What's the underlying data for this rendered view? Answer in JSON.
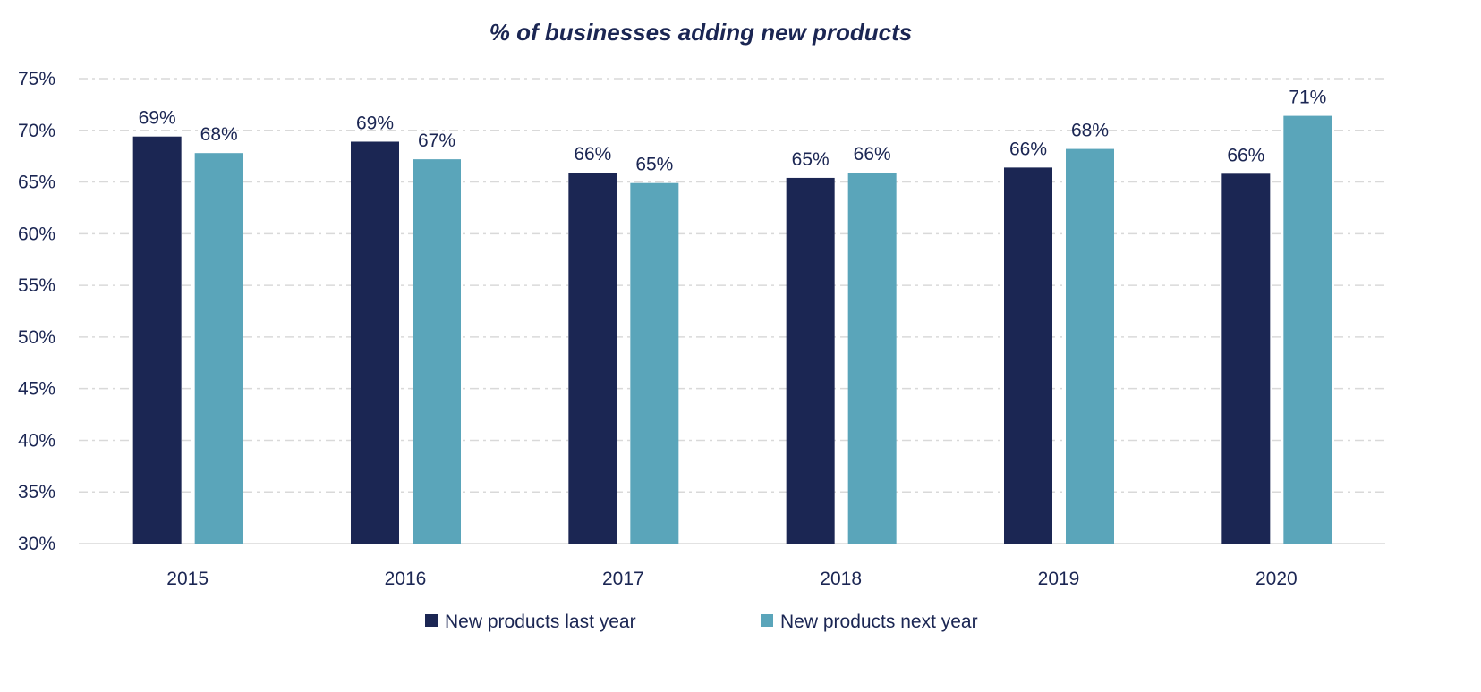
{
  "chart_data": {
    "type": "bar",
    "title": "% of businesses adding new products",
    "xlabel": "",
    "ylabel": "",
    "ylim": [
      30,
      75
    ],
    "yticks": [
      30,
      35,
      40,
      45,
      50,
      55,
      60,
      65,
      70,
      75
    ],
    "ytick_labels": [
      "30%",
      "35%",
      "40%",
      "45%",
      "50%",
      "55%",
      "60%",
      "65%",
      "70%",
      "75%"
    ],
    "grid": true,
    "legend_position": "bottom",
    "categories": [
      "2015",
      "2016",
      "2017",
      "2018",
      "2019",
      "2020"
    ],
    "series": [
      {
        "name": "New products last year",
        "color": "#1b2653",
        "values": [
          69.4,
          68.9,
          65.9,
          65.4,
          66.4,
          65.8
        ],
        "labels": [
          "69%",
          "69%",
          "66%",
          "65%",
          "66%",
          "66%"
        ]
      },
      {
        "name": "New products next year",
        "color": "#5aa5ba",
        "values": [
          67.8,
          67.2,
          64.9,
          65.9,
          68.2,
          71.4
        ],
        "labels": [
          "68%",
          "67%",
          "65%",
          "66%",
          "68%",
          "71%"
        ]
      }
    ],
    "text_color": "#1b2653",
    "grid_color": "#d9d9d9"
  }
}
